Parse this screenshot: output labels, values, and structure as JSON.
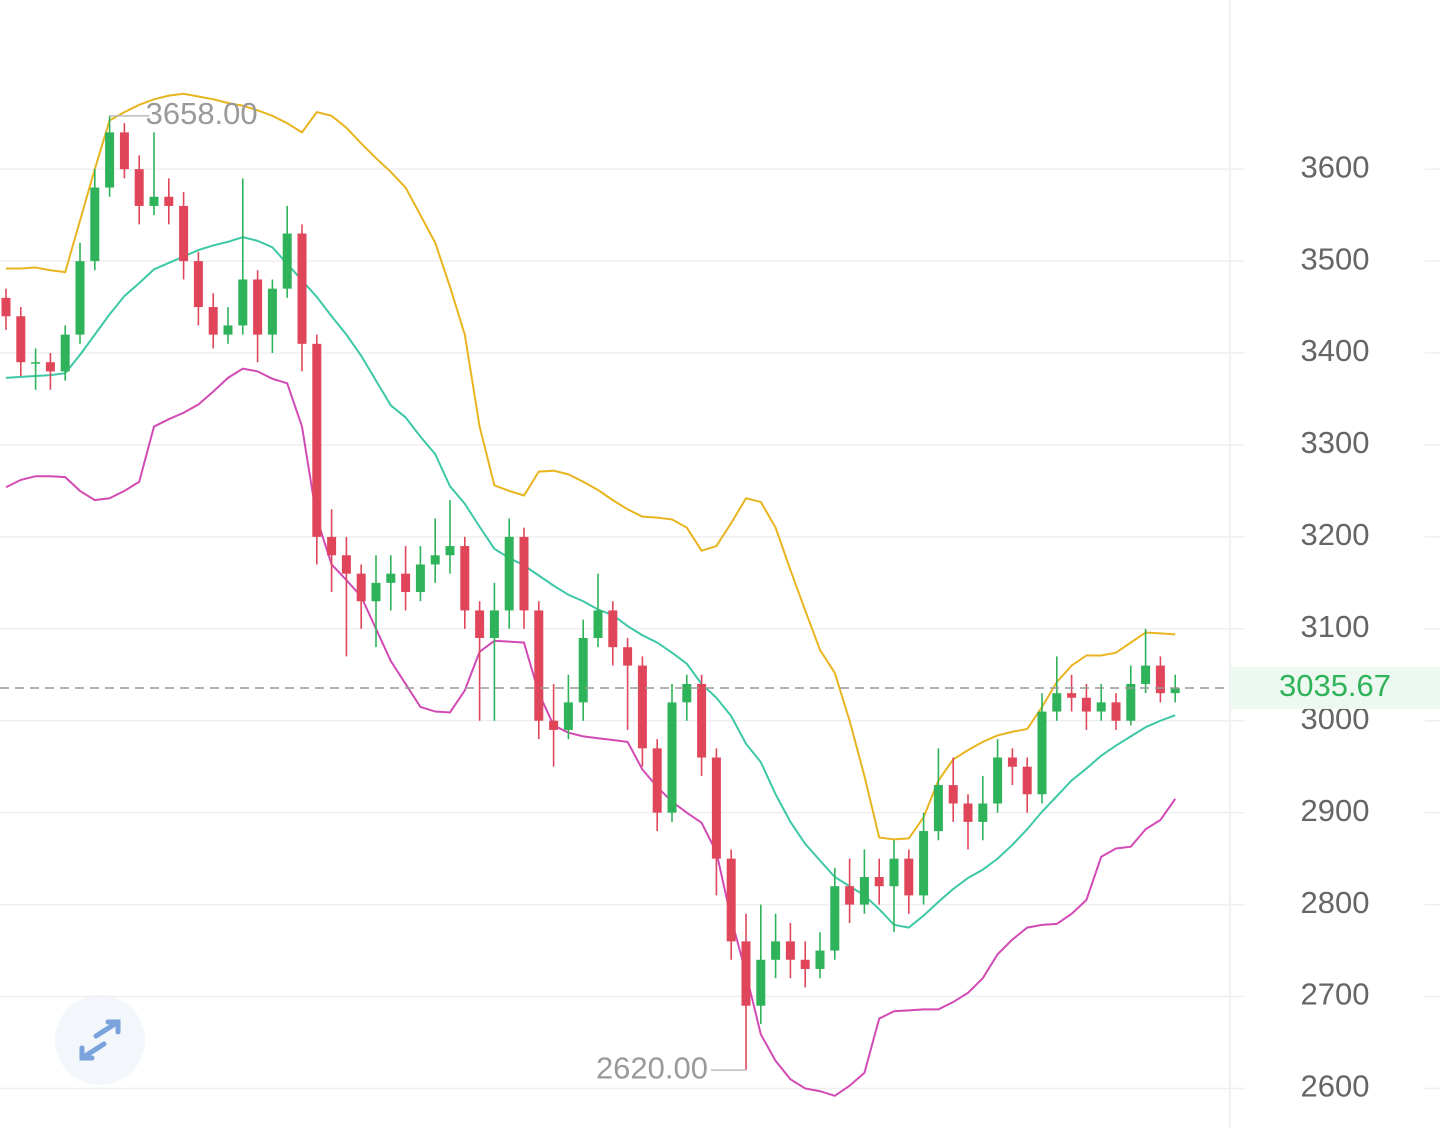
{
  "chart_data": {
    "type": "candlestick",
    "up_color": "#2fb35a",
    "down_color": "#e0465a",
    "open": [
      3460,
      3440,
      3390,
      3390,
      3380,
      3420,
      3500,
      3580,
      3640,
      3600,
      3560,
      3570,
      3560,
      3500,
      3450,
      3420,
      3430,
      3480,
      3420,
      3470,
      3530,
      3410,
      3200,
      3180,
      3160,
      3130,
      3150,
      3160,
      3140,
      3170,
      3180,
      3190,
      3120,
      3090,
      3120,
      3200,
      3120,
      3000,
      2990,
      3020,
      3090,
      3120,
      3080,
      3060,
      2970,
      2900,
      3020,
      3040,
      2960,
      2850,
      2760,
      2690,
      2740,
      2760,
      2740,
      2730,
      2750,
      2820,
      2800,
      2830,
      2820,
      2850,
      2810,
      2880,
      2930,
      2910,
      2890,
      2910,
      2960,
      2950,
      2920,
      3010,
      3030,
      3025,
      3010,
      3020,
      3000,
      3040,
      3060,
      3030
    ],
    "high": [
      3470,
      3450,
      3405,
      3400,
      3430,
      3520,
      3600,
      3658,
      3650,
      3615,
      3640,
      3590,
      3575,
      3510,
      3465,
      3450,
      3590,
      3490,
      3480,
      3560,
      3540,
      3420,
      3230,
      3200,
      3170,
      3180,
      3180,
      3190,
      3190,
      3220,
      3240,
      3200,
      3130,
      3150,
      3220,
      3210,
      3130,
      3040,
      3050,
      3110,
      3160,
      3130,
      3090,
      3070,
      2980,
      3040,
      3050,
      3050,
      2970,
      2860,
      2790,
      2800,
      2790,
      2780,
      2760,
      2770,
      2840,
      2850,
      2860,
      2850,
      2870,
      2860,
      2900,
      2970,
      2960,
      2920,
      2940,
      2980,
      2970,
      2960,
      3030,
      3070,
      3050,
      3040,
      3040,
      3030,
      3060,
      3100,
      3070,
      3050
    ],
    "low": [
      3425,
      3375,
      3360,
      3360,
      3370,
      3410,
      3490,
      3570,
      3590,
      3540,
      3550,
      3540,
      3480,
      3430,
      3405,
      3410,
      3420,
      3390,
      3400,
      3460,
      3380,
      3170,
      3140,
      3070,
      3100,
      3080,
      3120,
      3120,
      3130,
      3150,
      3160,
      3100,
      3000,
      3000,
      3100,
      3100,
      2980,
      2950,
      2980,
      3000,
      3080,
      3060,
      2990,
      2950,
      2880,
      2890,
      3000,
      2940,
      2810,
      2740,
      2620,
      2670,
      2720,
      2720,
      2710,
      2720,
      2740,
      2780,
      2790,
      2800,
      2770,
      2790,
      2800,
      2870,
      2890,
      2860,
      2870,
      2900,
      2930,
      2900,
      2910,
      3000,
      3010,
      2990,
      3000,
      2990,
      2995,
      3030,
      3020,
      3020
    ],
    "close": [
      3440,
      3390,
      3390,
      3380,
      3420,
      3500,
      3580,
      3640,
      3600,
      3560,
      3570,
      3560,
      3500,
      3450,
      3420,
      3430,
      3480,
      3420,
      3470,
      3530,
      3410,
      3200,
      3180,
      3160,
      3130,
      3150,
      3160,
      3140,
      3170,
      3180,
      3190,
      3120,
      3090,
      3120,
      3200,
      3120,
      3000,
      2990,
      3020,
      3090,
      3120,
      3080,
      3060,
      2970,
      2900,
      3020,
      3040,
      2960,
      2850,
      2760,
      2690,
      2740,
      2760,
      2740,
      2730,
      2750,
      2820,
      2800,
      2830,
      2820,
      2850,
      2810,
      2880,
      2930,
      2910,
      2890,
      2910,
      2960,
      2950,
      2920,
      3010,
      3030,
      3025,
      3010,
      3020,
      3000,
      3040,
      3060,
      3030,
      3035.67
    ],
    "series": [
      {
        "color": "#e8b420",
        "values": [
          3492,
          3492,
          3493,
          3490,
          3488,
          3544,
          3600,
          3653,
          3662,
          3670,
          3676,
          3680,
          3682,
          3679,
          3676,
          3672,
          3669,
          3664,
          3658,
          3650,
          3640,
          3662,
          3658,
          3645,
          3628,
          3612,
          3597,
          3580,
          3550,
          3520,
          3472,
          3420,
          3320,
          3256,
          3250,
          3245,
          3271,
          3272,
          3268,
          3260,
          3251,
          3240,
          3230,
          3222,
          3221,
          3219,
          3210,
          3185,
          3190,
          3215,
          3242,
          3238,
          3210,
          3164,
          3120,
          3077,
          3052,
          3000,
          2940,
          2873,
          2871,
          2872,
          2895,
          2935,
          2958,
          2968,
          2977,
          2984,
          2988,
          2991,
          3015,
          3042,
          3060,
          3071,
          3071,
          3074,
          3085,
          3096,
          3095,
          3094
        ]
      },
      {
        "color": "#3cc8a6",
        "values": [
          3373,
          3374,
          3375,
          3376,
          3378,
          3398,
          3420,
          3442,
          3462,
          3476,
          3491,
          3498,
          3505,
          3512,
          3517,
          3521,
          3526,
          3522,
          3515,
          3497,
          3479,
          3461,
          3440,
          3420,
          3397,
          3370,
          3343,
          3330,
          3309,
          3290,
          3255,
          3236,
          3211,
          3187,
          3177,
          3169,
          3158,
          3147,
          3137,
          3130,
          3121,
          3115,
          3103,
          3093,
          3085,
          3074,
          3062,
          3040,
          3025,
          3005,
          2975,
          2955,
          2920,
          2890,
          2866,
          2848,
          2830,
          2820,
          2810,
          2795,
          2778,
          2775,
          2788,
          2803,
          2817,
          2829,
          2838,
          2850,
          2865,
          2882,
          2901,
          2918,
          2935,
          2948,
          2962,
          2973,
          2983,
          2993,
          3000,
          3006
        ]
      },
      {
        "color": "#d24ab4",
        "values": [
          3254,
          3262,
          3266,
          3266,
          3265,
          3250,
          3240,
          3242,
          3250,
          3260,
          3320,
          3328,
          3335,
          3344,
          3358,
          3373,
          3383,
          3380,
          3372,
          3367,
          3320,
          3220,
          3170,
          3153,
          3135,
          3100,
          3065,
          3040,
          3015,
          3010,
          3009,
          3033,
          3075,
          3087,
          3086,
          3085,
          3030,
          2995,
          2987,
          2983,
          2981,
          2979,
          2977,
          2947,
          2928,
          2912,
          2900,
          2889,
          2857,
          2785,
          2725,
          2659,
          2630,
          2610,
          2600,
          2597,
          2592,
          2603,
          2617,
          2676,
          2684,
          2685,
          2686,
          2686,
          2694,
          2704,
          2720,
          2746,
          2762,
          2775,
          2778,
          2779,
          2790,
          2805,
          2852,
          2861,
          2863,
          2882,
          2892,
          2915
        ]
      }
    ],
    "ylim": [
      2557,
      3784
    ],
    "yticks": [
      2600,
      2700,
      2800,
      2900,
      3000,
      3100,
      3200,
      3300,
      3400,
      3500,
      3600
    ],
    "grid": true,
    "max_label": {
      "value": 3658,
      "label": "3658.00"
    },
    "min_label": {
      "value": 2620,
      "label": "2620.00"
    },
    "last_price": {
      "value": 3035.67,
      "label": "3035.67"
    },
    "last_color": "#2fb35a"
  }
}
